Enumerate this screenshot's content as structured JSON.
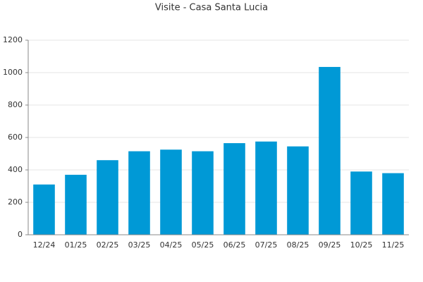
{
  "chart_data": {
    "type": "bar",
    "title": "Visite - Casa Santa Lucia",
    "categories": [
      "12/24",
      "01/25",
      "02/25",
      "03/25",
      "04/25",
      "05/25",
      "06/25",
      "07/25",
      "08/25",
      "09/25",
      "10/25",
      "11/25"
    ],
    "values": [
      310,
      370,
      460,
      515,
      525,
      515,
      565,
      575,
      545,
      1035,
      390,
      380
    ],
    "color": "#0099d6",
    "ylim": [
      0,
      1200
    ],
    "yticks": [
      0,
      200,
      400,
      600,
      800,
      1000,
      1200
    ],
    "grid": true
  }
}
